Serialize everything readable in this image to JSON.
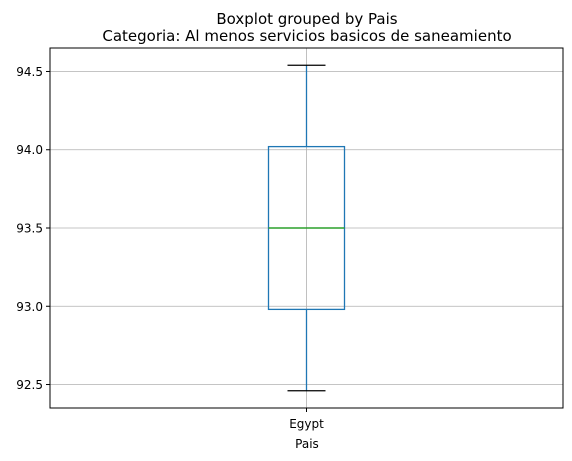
{
  "chart_data": {
    "type": "boxplot",
    "title": "Boxplot grouped by Pais",
    "subtitle": "Categoria: Al menos servicios basicos de saneamiento",
    "xlabel": "Pais",
    "ylabel": "",
    "categories": [
      "Egypt"
    ],
    "boxes": [
      {
        "category": "Egypt",
        "whisker_low": 92.46,
        "q1": 92.98,
        "median": 93.5,
        "q3": 94.02,
        "whisker_high": 94.54
      }
    ],
    "ylim": [
      92.35,
      94.65
    ],
    "yticks": [
      92.5,
      93.0,
      93.5,
      94.0,
      94.5
    ],
    "ytick_labels": [
      "92.5",
      "93.0",
      "93.5",
      "94.0",
      "94.5"
    ],
    "grid": true,
    "colors": {
      "box": "#1f77b4",
      "median": "#2ca02c",
      "cap": "#000000",
      "grid": "#b0b0b0"
    }
  }
}
